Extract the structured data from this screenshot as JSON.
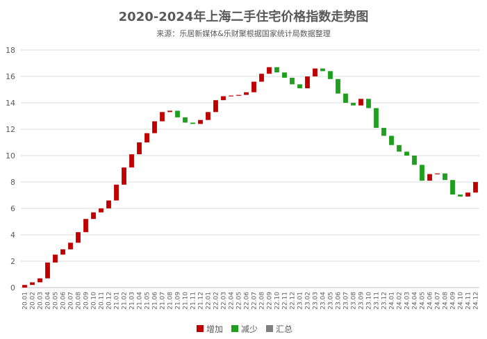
{
  "chart_data": {
    "type": "waterfall",
    "title": "2020-2024年上海二手住宅价格指数走势图",
    "subtitle": "来源：乐居新媒体&乐财聚根据国家统计局数据整理",
    "ylim": [
      0,
      18
    ],
    "yticks": [
      0,
      2,
      4,
      6,
      8,
      10,
      12,
      14,
      16,
      18
    ],
    "grid": true,
    "legend_position": "bottom",
    "legend": [
      {
        "label": "增加",
        "color": "#C00000"
      },
      {
        "label": "减少",
        "color": "#1EA01E"
      },
      {
        "label": "汇总",
        "color": "#7F7F7F"
      }
    ],
    "categories": [
      "20.01",
      "20.02",
      "20.03",
      "20.04",
      "20.05",
      "20.06",
      "20.07",
      "20.08",
      "20.09",
      "20.10",
      "20.11",
      "20.12",
      "21.01",
      "21.02",
      "21.03",
      "21.04",
      "21.05",
      "21.06",
      "21.07",
      "21.08",
      "21.09",
      "21.10",
      "21.11",
      "21.12",
      "22.01",
      "22.02",
      "22.03",
      "22.04",
      "22.05",
      "22.06",
      "22.07",
      "22.08",
      "22.09",
      "22.10",
      "22.11",
      "22.12",
      "23.01",
      "23.02",
      "23.03",
      "23.04",
      "23.05",
      "23.06",
      "23.07",
      "23.08",
      "23.09",
      "23.10",
      "23.11",
      "23.12",
      "24.01",
      "24.02",
      "24.03",
      "24.04",
      "24.05",
      "24.06",
      "24.07",
      "24.08",
      "24.09",
      "24.10",
      "24.11",
      "24.12"
    ],
    "changes": [
      0.2,
      0.2,
      0.3,
      1.2,
      0.6,
      0.4,
      0.5,
      0.8,
      1.0,
      0.5,
      0.3,
      0.6,
      1.2,
      1.3,
      1.0,
      0.9,
      0.7,
      0.9,
      0.7,
      0.1,
      -0.5,
      -0.4,
      -0.1,
      0.3,
      0.6,
      0.9,
      0.3,
      0.05,
      0.05,
      0.2,
      0.8,
      0.6,
      0.5,
      -0.4,
      -0.4,
      -0.5,
      -0.3,
      0.9,
      0.6,
      -0.2,
      -0.6,
      -1.1,
      -0.7,
      -0.2,
      0.5,
      -0.7,
      -1.5,
      -0.6,
      -0.7,
      -0.5,
      -0.3,
      -0.7,
      -1.2,
      0.5,
      0.05,
      -0.5,
      -1.1,
      -0.15,
      0.3,
      0.8
    ]
  }
}
